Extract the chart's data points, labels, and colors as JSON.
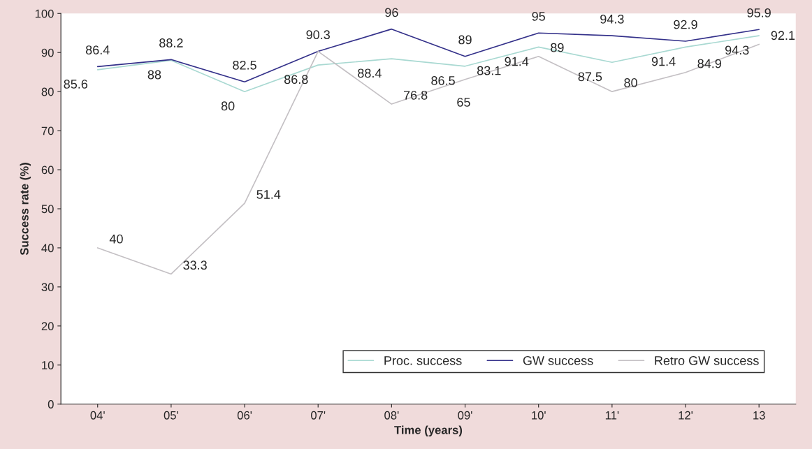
{
  "chart_data": {
    "type": "line",
    "xlabel": "Time (years)",
    "ylabel": "Success rate (%)",
    "categories": [
      "04'",
      "05'",
      "06'",
      "07'",
      "08'",
      "09'",
      "10'",
      "11'",
      "12'",
      "13"
    ],
    "series": [
      {
        "name": "Proc. success",
        "color": "#a9d9d2",
        "values": [
          85.6,
          88,
          80,
          86.8,
          88.4,
          86.5,
          91.4,
          87.5,
          91.4,
          94.3
        ],
        "value_labels": [
          "85.6",
          "88",
          "80",
          "86.8",
          "88.4",
          "86.5",
          "91.4",
          "87.5",
          "91.4",
          "94.3"
        ]
      },
      {
        "name": "GW success",
        "color": "#34318a",
        "values": [
          86.4,
          88.2,
          82.5,
          90.3,
          96,
          89,
          95,
          94.3,
          92.9,
          95.9
        ],
        "value_labels": [
          "86.4",
          "88.2",
          "82.5",
          "90.3",
          "96",
          "89",
          "95",
          "94.3",
          "92.9",
          "95.9"
        ]
      },
      {
        "name": "Retro GW success",
        "color": "#c4c0c4",
        "values": [
          40,
          33.3,
          51.4,
          90.3,
          76.8,
          83.1,
          89,
          80,
          84.9,
          92.1
        ],
        "value_labels": [
          "40",
          "33.3",
          "51.4",
          null,
          "76.8",
          "83.1",
          "89",
          "80",
          "84.9",
          "92.1"
        ]
      }
    ],
    "annotations": [
      "65"
    ],
    "ylim": [
      0,
      100
    ],
    "yticks": [
      0,
      10,
      20,
      30,
      40,
      50,
      60,
      70,
      80,
      90,
      100
    ],
    "grid": false,
    "legend": "bottom right",
    "marker": "none",
    "line_style": "solid"
  }
}
